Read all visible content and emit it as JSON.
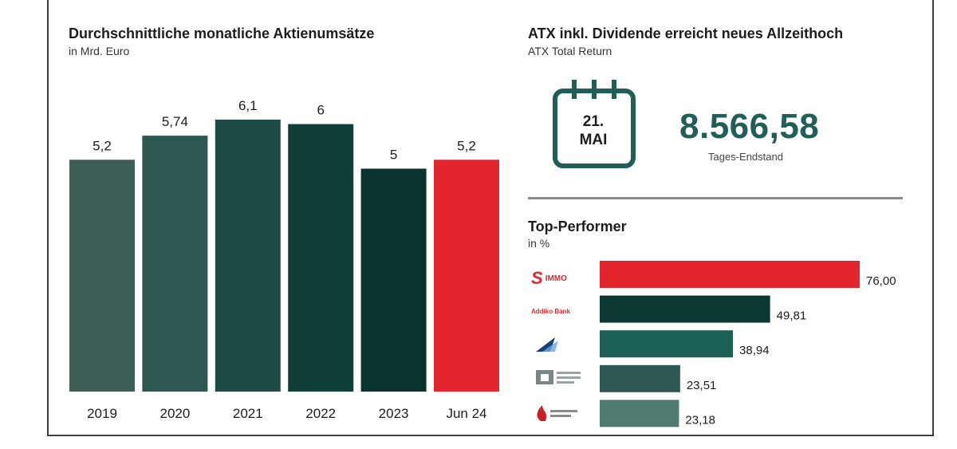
{
  "left_panel": {
    "title": "Durchschnittliche monatliche Aktienumsätze",
    "subtitle": "in Mrd. Euro"
  },
  "right_panel": {
    "title": "ATX inkl. Dividende erreicht neues Allzeithoch",
    "subtitle": "ATX Total Return",
    "calendar": {
      "day": "21.",
      "month": "MAI"
    },
    "value": "8.566,58",
    "value_caption": "Tages-Endstand",
    "top_title": "Top-Performer",
    "top_subtitle": "in %"
  },
  "logos": [
    {
      "icon": "s-immo-logo",
      "text": "IMMO"
    },
    {
      "icon": "addiko-bank-logo",
      "text": "Addiko Bank"
    },
    {
      "icon": "austrian-airlines-logo",
      "text": ""
    },
    {
      "icon": "building-logo",
      "text": ""
    },
    {
      "icon": "red-flame-logo",
      "text": ""
    }
  ],
  "chart_data": [
    {
      "type": "bar",
      "title": "Durchschnittliche monatliche Aktienumsätze",
      "subtitle": "in Mrd. Euro",
      "categories": [
        "2019",
        "2020",
        "2021",
        "2022",
        "2023",
        "Jun 24"
      ],
      "values": [
        5.2,
        5.74,
        6.1,
        6,
        5,
        5.2
      ],
      "value_labels": [
        "5,2",
        "5,74",
        "6,1",
        "6",
        "5",
        "5,2"
      ],
      "colors": [
        "#3d5f58",
        "#2f5751",
        "#1e4c45",
        "#0f3f38",
        "#0a332d",
        "#e3262e"
      ],
      "ylim": [
        0,
        6.1
      ],
      "grid": false
    },
    {
      "type": "bar",
      "orientation": "horizontal",
      "title": "Top-Performer",
      "subtitle": "in %",
      "values": [
        76.0,
        49.81,
        38.94,
        23.51,
        23.18
      ],
      "value_labels": [
        "76,00",
        "49,81",
        "38,94",
        "23,51",
        "23,18"
      ],
      "colors": [
        "#e3262e",
        "#0c3832",
        "#1b5f55",
        "#2f5751",
        "#4f7a71"
      ],
      "xlim": [
        0,
        76
      ],
      "grid": false
    }
  ]
}
